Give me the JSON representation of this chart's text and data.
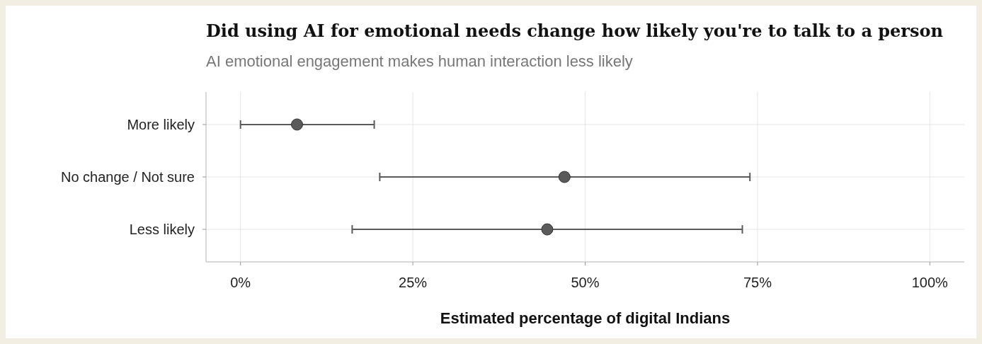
{
  "chart_data": {
    "type": "scatter",
    "orientation": "horizontal",
    "title": "Did using AI for emotional needs change how likely you're to talk to a person",
    "subtitle": "AI emotional engagement makes human interaction less likely",
    "xlabel": "Estimated percentage of digital Indians",
    "categories": [
      "More likely",
      "No change / Not sure",
      "Less likely"
    ],
    "series": [
      {
        "color": "#5a5a5a",
        "values": [
          8.2,
          47.0,
          44.5
        ],
        "errors": [
          [
            0,
            19.4
          ],
          [
            20.2,
            73.9
          ],
          [
            16.2,
            72.8
          ]
        ]
      }
    ],
    "xlim": [
      -5,
      105
    ],
    "xticks": [
      {
        "value": 0,
        "label": "0%"
      },
      {
        "value": 25,
        "label": "25%"
      },
      {
        "value": 50,
        "label": "50%"
      },
      {
        "value": 75,
        "label": "75%"
      },
      {
        "value": 100,
        "label": "100%"
      }
    ],
    "grid": true,
    "marker": "circle"
  }
}
